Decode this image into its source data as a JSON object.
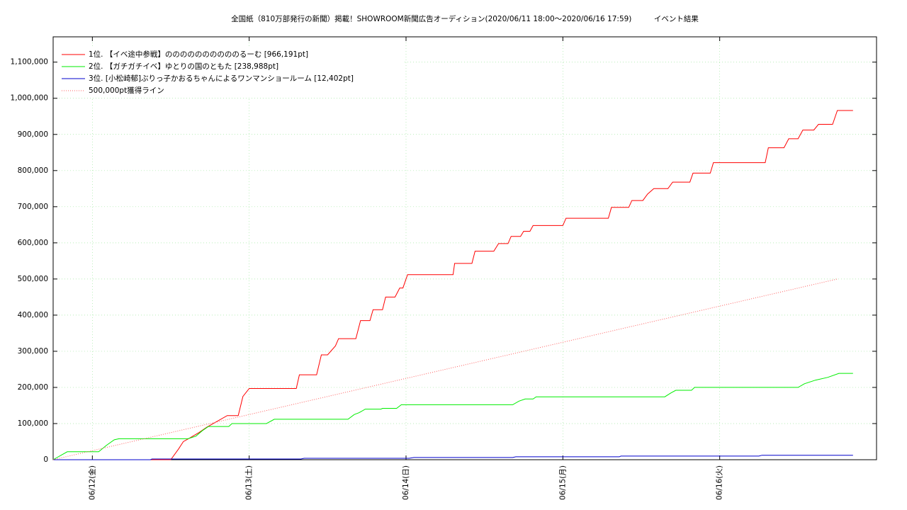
{
  "chart_data": {
    "type": "line",
    "title": "全国紙（810万部発行の新聞）掲載！SHOWROOM新聞広告オーディション(2020/06/11 18:00～2020/06/16 17:59)　　　イベント結果",
    "xlim": [
      -0.25,
      5.0
    ],
    "xticks": [
      {
        "value": 0,
        "label": "06/12(金)"
      },
      {
        "value": 1,
        "label": "06/13(土)"
      },
      {
        "value": 2,
        "label": "06/14(日)"
      },
      {
        "value": 3,
        "label": "06/15(月)"
      },
      {
        "value": 4,
        "label": "06/16(火)"
      }
    ],
    "ylim": [
      0,
      1170000
    ],
    "yticks": [
      {
        "value": 0,
        "label": "0"
      },
      {
        "value": 100000,
        "label": "100,000"
      },
      {
        "value": 200000,
        "label": "200,000"
      },
      {
        "value": 300000,
        "label": "300,000"
      },
      {
        "value": 400000,
        "label": "400,000"
      },
      {
        "value": 500000,
        "label": "500,000"
      },
      {
        "value": 600000,
        "label": "600,000"
      },
      {
        "value": 700000,
        "label": "700,000"
      },
      {
        "value": 800000,
        "label": "800,000"
      },
      {
        "value": 900000,
        "label": "900,000"
      },
      {
        "value": 1000000,
        "label": "1,000,000"
      },
      {
        "value": 1100000,
        "label": "1,100,000"
      }
    ],
    "grid": true,
    "legend": "top-left",
    "series": [
      {
        "name": "1位. 【イベ途中参戦】ののののののののののるーむ [966,191pt]",
        "color": "#ff0000",
        "style": "solid",
        "x": [
          -0.25,
          0.5,
          0.55,
          0.58,
          0.62,
          0.68,
          0.73,
          0.86,
          0.93,
          0.96,
          1.0,
          1.3,
          1.32,
          1.43,
          1.46,
          1.5,
          1.55,
          1.57,
          1.68,
          1.71,
          1.77,
          1.79,
          1.85,
          1.87,
          1.93,
          1.96,
          1.98,
          2.01,
          2.3,
          2.31,
          2.42,
          2.44,
          2.56,
          2.59,
          2.65,
          2.67,
          2.73,
          2.75,
          2.79,
          2.81,
          3.0,
          3.02,
          3.29,
          3.31,
          3.42,
          3.44,
          3.51,
          3.54,
          3.58,
          3.67,
          3.7,
          3.81,
          3.83,
          3.94,
          3.96,
          4.29,
          4.31,
          4.41,
          4.44,
          4.5,
          4.53,
          4.6,
          4.63,
          4.72,
          4.75,
          4.85
        ],
        "values": [
          0,
          0,
          30000,
          50000,
          60000,
          75000,
          90000,
          122000,
          122000,
          175000,
          197000,
          197000,
          235000,
          235000,
          290000,
          290000,
          315000,
          335000,
          335000,
          385000,
          385000,
          415000,
          415000,
          450000,
          450000,
          475000,
          475000,
          512000,
          512000,
          543000,
          543000,
          577000,
          577000,
          598000,
          598000,
          618000,
          618000,
          632000,
          632000,
          648000,
          648000,
          668000,
          668000,
          698000,
          698000,
          717000,
          717000,
          735000,
          750000,
          750000,
          768000,
          768000,
          793000,
          793000,
          822000,
          822000,
          863000,
          863000,
          888000,
          888000,
          912000,
          912000,
          928000,
          928000,
          966191,
          966191
        ]
      },
      {
        "name": "2位. 【ガチガチイベ】ゆとりの国のともた [238,988pt]",
        "color": "#00ee00",
        "style": "solid",
        "x": [
          -0.25,
          -0.16,
          0.04,
          0.09,
          0.14,
          0.17,
          0.61,
          0.66,
          0.7,
          0.74,
          0.87,
          0.89,
          1.11,
          1.16,
          1.63,
          1.67,
          1.7,
          1.74,
          1.84,
          1.85,
          1.94,
          1.97,
          2.68,
          2.72,
          2.76,
          2.81,
          2.83,
          3.65,
          3.69,
          3.72,
          3.82,
          3.84,
          4.5,
          4.54,
          4.61,
          4.69,
          4.76,
          4.85
        ],
        "values": [
          0,
          22000,
          22000,
          40000,
          55000,
          58000,
          58000,
          65000,
          80000,
          92000,
          92000,
          100000,
          100000,
          112000,
          112000,
          125000,
          130000,
          140000,
          140000,
          142000,
          142000,
          152000,
          152000,
          162000,
          168000,
          168000,
          174000,
          174000,
          185000,
          192000,
          192000,
          200000,
          200000,
          210000,
          220000,
          228000,
          238988,
          238988
        ]
      },
      {
        "name": "3位. [小松崎郁]ぶりっ子かおるちゃんによるワンマンショールーム [12,402pt]",
        "color": "#0000cc",
        "style": "solid",
        "x": [
          -0.25,
          0.37,
          0.38,
          1.33,
          1.35,
          2.02,
          2.05,
          2.68,
          2.7,
          3.36,
          3.37,
          4.25,
          4.27,
          4.85
        ],
        "values": [
          0,
          0,
          2000,
          2000,
          4000,
          4000,
          6000,
          6000,
          8000,
          8000,
          10000,
          10000,
          12402,
          12402
        ]
      },
      {
        "name": "500,000pt獲得ライン",
        "color": "#ff6060",
        "style": "dotted",
        "x": [
          -0.25,
          4.75
        ],
        "values": [
          0,
          500000
        ]
      }
    ]
  }
}
